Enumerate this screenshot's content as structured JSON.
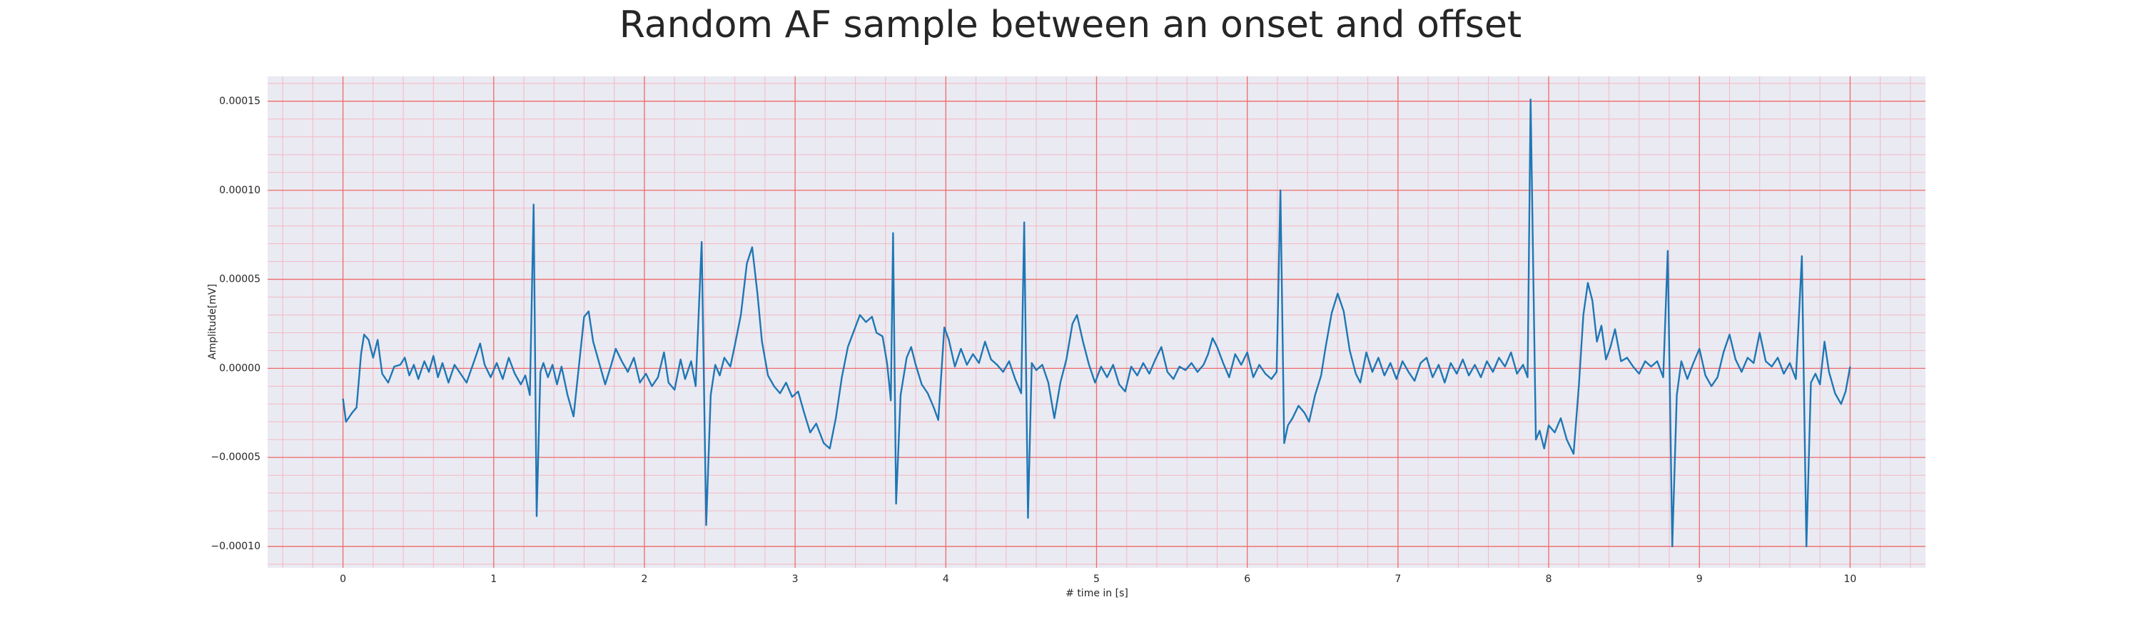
{
  "chart_data": {
    "type": "line",
    "title": "Random AF sample between an onset and offset",
    "xlabel": "# time in [s]",
    "ylabel": "Amplitude[mV]",
    "color": "#1f77b4",
    "grid": true,
    "minor_grid": true,
    "xlim": [
      -0.5,
      10.5
    ],
    "ylim": [
      -0.000112,
      0.000164
    ],
    "xticks": [
      0,
      1,
      2,
      3,
      4,
      5,
      6,
      7,
      8,
      9,
      10
    ],
    "yticks": [
      {
        "value": -0.0001,
        "label": "−0.00010"
      },
      {
        "value": -5e-05,
        "label": "−0.00005"
      },
      {
        "value": 0,
        "label": "0.00000"
      },
      {
        "value": 5e-05,
        "label": "0.00005"
      },
      {
        "value": 0.0001,
        "label": "0.00010"
      },
      {
        "value": 0.00015,
        "label": "0.00015"
      }
    ],
    "x": [
      0,
      0.02,
      0.06,
      0.09,
      0.12,
      0.14,
      0.17,
      0.2,
      0.23,
      0.26,
      0.3,
      0.34,
      0.38,
      0.41,
      0.44,
      0.47,
      0.5,
      0.54,
      0.57,
      0.6,
      0.63,
      0.66,
      0.7,
      0.74,
      0.78,
      0.82,
      0.87,
      0.91,
      0.94,
      0.98,
      1.02,
      1.06,
      1.1,
      1.14,
      1.18,
      1.21,
      1.24,
      1.265,
      1.285,
      1.31,
      1.33,
      1.36,
      1.39,
      1.42,
      1.45,
      1.49,
      1.53,
      1.57,
      1.6,
      1.63,
      1.66,
      1.7,
      1.74,
      1.78,
      1.81,
      1.85,
      1.89,
      1.93,
      1.97,
      2.01,
      2.05,
      2.09,
      2.13,
      2.16,
      2.2,
      2.24,
      2.27,
      2.31,
      2.34,
      2.38,
      2.41,
      2.44,
      2.47,
      2.5,
      2.53,
      2.57,
      2.6,
      2.64,
      2.68,
      2.715,
      2.75,
      2.78,
      2.82,
      2.86,
      2.9,
      2.94,
      2.98,
      3.02,
      3.06,
      3.1,
      3.14,
      3.19,
      3.23,
      3.27,
      3.31,
      3.35,
      3.39,
      3.43,
      3.47,
      3.51,
      3.54,
      3.58,
      3.61,
      3.635,
      3.65,
      3.67,
      3.7,
      3.74,
      3.77,
      3.8,
      3.84,
      3.88,
      3.92,
      3.95,
      3.99,
      4.02,
      4.06,
      4.1,
      4.14,
      4.18,
      4.22,
      4.26,
      4.3,
      4.34,
      4.38,
      4.42,
      4.46,
      4.5,
      4.52,
      4.545,
      4.57,
      4.6,
      4.64,
      4.68,
      4.72,
      4.76,
      4.8,
      4.84,
      4.87,
      4.91,
      4.95,
      4.99,
      5.03,
      5.07,
      5.11,
      5.15,
      5.19,
      5.23,
      5.27,
      5.31,
      5.35,
      5.39,
      5.43,
      5.47,
      5.51,
      5.55,
      5.59,
      5.63,
      5.67,
      5.71,
      5.74,
      5.77,
      5.8,
      5.84,
      5.88,
      5.92,
      5.96,
      6.0,
      6.04,
      6.08,
      6.12,
      6.16,
      6.195,
      6.22,
      6.245,
      6.27,
      6.3,
      6.34,
      6.38,
      6.41,
      6.45,
      6.49,
      6.52,
      6.56,
      6.6,
      6.64,
      6.68,
      6.72,
      6.75,
      6.79,
      6.83,
      6.87,
      6.91,
      6.95,
      6.99,
      7.03,
      7.07,
      7.11,
      7.15,
      7.19,
      7.23,
      7.27,
      7.31,
      7.35,
      7.39,
      7.43,
      7.47,
      7.51,
      7.55,
      7.59,
      7.63,
      7.67,
      7.71,
      7.75,
      7.79,
      7.83,
      7.86,
      7.88,
      7.915,
      7.94,
      7.97,
      8.0,
      8.04,
      8.08,
      8.12,
      8.165,
      8.2,
      8.23,
      8.26,
      8.29,
      8.32,
      8.35,
      8.38,
      8.41,
      8.44,
      8.48,
      8.52,
      8.56,
      8.6,
      8.64,
      8.68,
      8.72,
      8.76,
      8.79,
      8.82,
      8.85,
      8.88,
      8.92,
      8.96,
      9.0,
      9.04,
      9.08,
      9.12,
      9.16,
      9.2,
      9.24,
      9.28,
      9.32,
      9.36,
      9.4,
      9.44,
      9.48,
      9.52,
      9.56,
      9.6,
      9.64,
      9.68,
      9.71,
      9.74,
      9.77,
      9.8,
      9.83,
      9.86,
      9.9,
      9.94,
      9.97,
      10.0
    ],
    "values": [
      -1.7e-05,
      -3e-05,
      -2.5e-05,
      -2.2e-05,
      8e-06,
      1.9e-05,
      1.6e-05,
      6e-06,
      1.6e-05,
      -3e-06,
      -8e-06,
      1e-06,
      2e-06,
      6e-06,
      -4e-06,
      2e-06,
      -6e-06,
      4e-06,
      -2e-06,
      7e-06,
      -5e-06,
      3e-06,
      -8e-06,
      2e-06,
      -3e-06,
      -8e-06,
      4e-06,
      1.4e-05,
      2e-06,
      -5e-06,
      3e-06,
      -6e-06,
      6e-06,
      -3e-06,
      -9e-06,
      -4e-06,
      -1.5e-05,
      9.2e-05,
      -8.3e-05,
      -2e-06,
      3e-06,
      -5e-06,
      2e-06,
      -9e-06,
      1e-06,
      -1.5e-05,
      -2.7e-05,
      5e-06,
      2.9e-05,
      3.2e-05,
      1.5e-05,
      3e-06,
      -9e-06,
      2e-06,
      1.1e-05,
      4e-06,
      -2e-06,
      6e-06,
      -8e-06,
      -3e-06,
      -1e-05,
      -5e-06,
      9e-06,
      -8e-06,
      -1.2e-05,
      5e-06,
      -6e-06,
      4e-06,
      -1e-05,
      7.1e-05,
      -8.8e-05,
      -1.5e-05,
      2e-06,
      -4e-06,
      6e-06,
      1e-06,
      1.3e-05,
      3e-05,
      5.9e-05,
      6.8e-05,
      4.2e-05,
      1.5e-05,
      -4e-06,
      -1e-05,
      -1.4e-05,
      -8e-06,
      -1.6e-05,
      -1.3e-05,
      -2.5e-05,
      -3.6e-05,
      -3.1e-05,
      -4.2e-05,
      -4.5e-05,
      -2.8e-05,
      -5e-06,
      1.2e-05,
      2.1e-05,
      3e-05,
      2.6e-05,
      2.9e-05,
      2e-05,
      1.8e-05,
      3e-06,
      -1.8e-05,
      7.6e-05,
      -7.6e-05,
      -1.5e-05,
      6e-06,
      1.2e-05,
      2e-06,
      -9e-06,
      -1.4e-05,
      -2.2e-05,
      -2.9e-05,
      2.3e-05,
      1.6e-05,
      1e-06,
      1.1e-05,
      2e-06,
      8e-06,
      3e-06,
      1.5e-05,
      5e-06,
      2e-06,
      -2e-06,
      4e-06,
      -6e-06,
      -1.4e-05,
      8.2e-05,
      -8.4e-05,
      3e-06,
      -1e-06,
      2e-06,
      -8e-06,
      -2.8e-05,
      -8e-06,
      5e-06,
      2.5e-05,
      3e-05,
      1.5e-05,
      2e-06,
      -8e-06,
      1e-06,
      -5e-06,
      2e-06,
      -9e-06,
      -1.3e-05,
      1e-06,
      -4e-06,
      3e-06,
      -3e-06,
      5e-06,
      1.2e-05,
      -2e-06,
      -6e-06,
      1e-06,
      -1e-06,
      3e-06,
      -2e-06,
      2e-06,
      8e-06,
      1.7e-05,
      1.2e-05,
      3e-06,
      -5e-06,
      8e-06,
      2e-06,
      9e-06,
      -5e-06,
      2e-06,
      -3e-06,
      -6e-06,
      -2e-06,
      0.0001,
      -4.2e-05,
      -3.2e-05,
      -2.8e-05,
      -2.1e-05,
      -2.5e-05,
      -3e-05,
      -1.5e-05,
      -4e-06,
      1.2e-05,
      3.1e-05,
      4.2e-05,
      3.2e-05,
      1e-05,
      -3e-06,
      -8e-06,
      9e-06,
      -2e-06,
      6e-06,
      -4e-06,
      3e-06,
      -6e-06,
      4e-06,
      -2e-06,
      -7e-06,
      3e-06,
      6e-06,
      -5e-06,
      2e-06,
      -8e-06,
      3e-06,
      -3e-06,
      5e-06,
      -4e-06,
      2e-06,
      -5e-06,
      4e-06,
      -2e-06,
      6e-06,
      1e-06,
      9e-06,
      -3e-06,
      2e-06,
      -5e-06,
      0.000151,
      -4e-05,
      -3.5e-05,
      -4.5e-05,
      -3.2e-05,
      -3.6e-05,
      -2.8e-05,
      -4e-05,
      -4.8e-05,
      -1e-05,
      3e-05,
      4.8e-05,
      3.8e-05,
      1.5e-05,
      2.4e-05,
      5e-06,
      1.2e-05,
      2.2e-05,
      4e-06,
      6e-06,
      1e-06,
      -3e-06,
      4e-06,
      1e-06,
      4e-06,
      -5e-06,
      6.6e-05,
      -0.0001,
      -1.5e-05,
      4e-06,
      -6e-06,
      3e-06,
      1.1e-05,
      -4e-06,
      -1e-05,
      -5e-06,
      9e-06,
      1.9e-05,
      5e-06,
      -2e-06,
      6e-06,
      3e-06,
      2e-05,
      4e-06,
      1e-06,
      6e-06,
      -3e-06,
      3e-06,
      -6e-06,
      6.3e-05,
      -0.0001,
      -8e-06,
      -3e-06,
      -9e-06,
      1.5e-05,
      -2e-06,
      -1.4e-05,
      -2e-05,
      -1.3e-05,
      1e-06
    ]
  }
}
